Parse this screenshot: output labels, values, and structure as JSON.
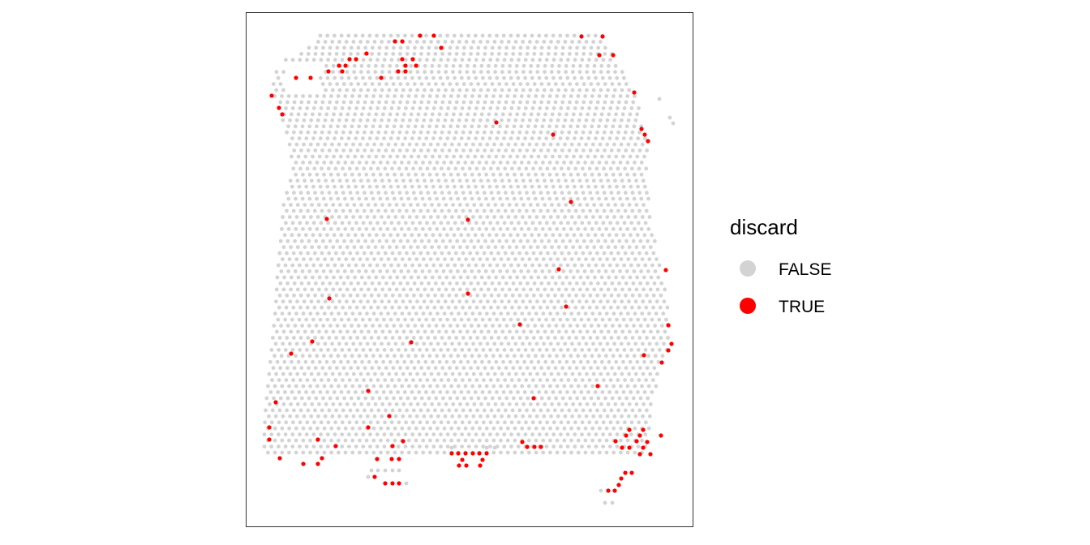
{
  "chart_data": {
    "type": "scatter",
    "title": "",
    "xlabel": "",
    "ylabel": "",
    "axes_visible": false,
    "grid": false,
    "legend_position": "right",
    "legend": {
      "title": "discard",
      "entries": [
        {
          "label": "FALSE",
          "color": "#d3d3d3"
        },
        {
          "label": "TRUE",
          "color": "#ff0000"
        }
      ]
    },
    "series": [
      {
        "name": "TRUE",
        "color": "#ff0000",
        "points": [
          [
            518,
            44
          ],
          [
            535,
            44
          ],
          [
            717,
            45
          ],
          [
            743,
            45
          ],
          [
            487,
            51
          ],
          [
            496,
            51
          ],
          [
            544,
            59
          ],
          [
            452,
            66
          ],
          [
            739,
            68
          ],
          [
            756,
            68
          ],
          [
            431,
            73
          ],
          [
            439,
            73
          ],
          [
            496,
            73
          ],
          [
            509,
            73
          ],
          [
            418,
            81
          ],
          [
            426,
            81
          ],
          [
            500,
            81
          ],
          [
            513,
            81
          ],
          [
            405,
            88
          ],
          [
            422,
            88
          ],
          [
            491,
            88
          ],
          [
            500,
            88
          ],
          [
            365,
            96
          ],
          [
            383,
            96
          ],
          [
            470,
            96
          ],
          [
            782,
            114
          ],
          [
            335,
            118
          ],
          [
            344,
            133
          ],
          [
            348,
            141
          ],
          [
            612,
            151
          ],
          [
            791,
            159
          ],
          [
            682,
            166
          ],
          [
            795,
            166
          ],
          [
            799,
            174
          ],
          [
            704,
            249
          ],
          [
            577,
            271
          ],
          [
            403,
            270
          ],
          [
            689,
            332
          ],
          [
            821,
            333
          ],
          [
            577,
            362
          ],
          [
            406,
            368
          ],
          [
            698,
            378
          ],
          [
            641,
            400
          ],
          [
            824,
            401
          ],
          [
            385,
            421
          ],
          [
            507,
            422
          ],
          [
            828,
            424
          ],
          [
            824,
            432
          ],
          [
            359,
            436
          ],
          [
            794,
            438
          ],
          [
            816,
            447
          ],
          [
            737,
            476
          ],
          [
            454,
            482
          ],
          [
            658,
            491
          ],
          [
            340,
            496
          ],
          [
            480,
            513
          ],
          [
            454,
            527
          ],
          [
            332,
            527
          ],
          [
            776,
            530
          ],
          [
            793,
            530
          ],
          [
            772,
            537
          ],
          [
            789,
            537
          ],
          [
            815,
            537
          ],
          [
            332,
            542
          ],
          [
            392,
            542
          ],
          [
            497,
            544
          ],
          [
            644,
            545
          ],
          [
            759,
            544
          ],
          [
            785,
            544
          ],
          [
            798,
            545
          ],
          [
            414,
            550
          ],
          [
            484,
            550
          ],
          [
            650,
            551
          ],
          [
            659,
            551
          ],
          [
            667,
            551
          ],
          [
            767,
            552
          ],
          [
            776,
            552
          ],
          [
            793,
            552
          ],
          [
            557,
            559
          ],
          [
            565,
            559
          ],
          [
            574,
            559
          ],
          [
            583,
            559
          ],
          [
            591,
            559
          ],
          [
            600,
            559
          ],
          [
            789,
            560
          ],
          [
            802,
            560
          ],
          [
            465,
            566
          ],
          [
            483,
            566
          ],
          [
            492,
            566
          ],
          [
            345,
            565
          ],
          [
            397,
            565
          ],
          [
            570,
            567
          ],
          [
            595,
            567
          ],
          [
            374,
            572
          ],
          [
            392,
            572
          ],
          [
            566,
            574
          ],
          [
            575,
            574
          ],
          [
            592,
            574
          ],
          [
            771,
            583
          ],
          [
            779,
            583
          ],
          [
            462,
            588
          ],
          [
            766,
            590
          ],
          [
            475,
            596
          ],
          [
            484,
            596
          ],
          [
            492,
            596
          ],
          [
            763,
            598
          ],
          [
            750,
            605
          ],
          [
            758,
            605
          ]
        ]
      }
    ]
  }
}
